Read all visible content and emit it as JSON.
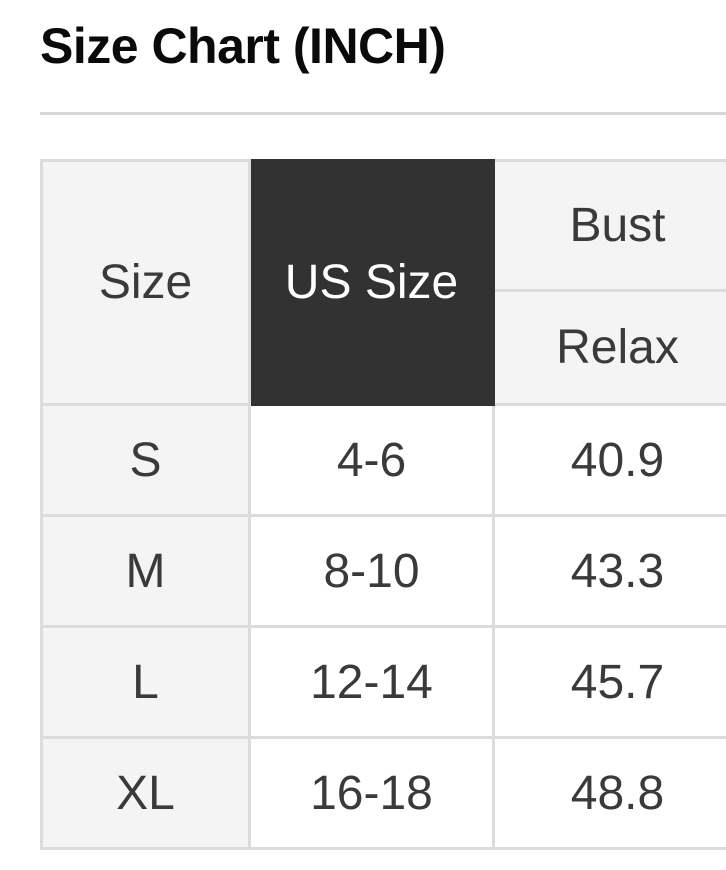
{
  "title": "Size Chart (INCH)",
  "size_chart": {
    "columns": {
      "size": "Size",
      "us_size": "US Size",
      "bust_group": "Bust",
      "bust_sub": "Relax"
    },
    "rows": [
      {
        "size": "S",
        "us_size": "4-6",
        "bust_relax": "40.9"
      },
      {
        "size": "M",
        "us_size": "8-10",
        "bust_relax": "43.3"
      },
      {
        "size": "L",
        "us_size": "12-14",
        "bust_relax": "45.7"
      },
      {
        "size": "XL",
        "us_size": "16-18",
        "bust_relax": "48.8"
      }
    ]
  },
  "colors": {
    "highlight_header_bg": "#323232",
    "header_cell_bg": "#f4f4f5",
    "border": "#dcdcdc",
    "divider": "#d8d8d8",
    "text": "#3a3a3a",
    "title_text": "#0a0a0a"
  }
}
